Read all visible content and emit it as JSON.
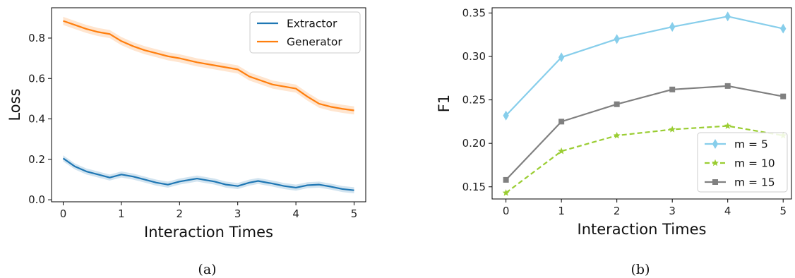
{
  "chart_data": [
    {
      "type": "line",
      "caption": "(a)",
      "xlabel": "Interaction Times",
      "ylabel": "Loss",
      "xlim": [
        -0.2,
        5.2
      ],
      "ylim": [
        -0.01,
        0.95
      ],
      "xticks": [
        0,
        1,
        2,
        3,
        4,
        5
      ],
      "yticks": [
        0.0,
        0.2,
        0.4,
        0.6,
        0.8
      ],
      "ytick_labels": [
        "0.0",
        "0.2",
        "0.4",
        "0.6",
        "0.8"
      ],
      "xtick_labels": [
        "0",
        "1",
        "2",
        "3",
        "4",
        "5"
      ],
      "grid": false,
      "legend_position": "top-right",
      "series": [
        {
          "name": "Extractor",
          "color": "#1f77b4",
          "x": [
            0,
            0.2,
            0.4,
            0.6,
            0.8,
            1.0,
            1.2,
            1.4,
            1.6,
            1.8,
            2.0,
            2.3,
            2.6,
            2.8,
            3.0,
            3.2,
            3.35,
            3.6,
            3.8,
            4.0,
            4.2,
            4.4,
            4.6,
            4.8,
            5.0
          ],
          "y": [
            0.205,
            0.165,
            0.14,
            0.125,
            0.11,
            0.125,
            0.115,
            0.1,
            0.085,
            0.075,
            0.09,
            0.105,
            0.09,
            0.075,
            0.068,
            0.085,
            0.093,
            0.08,
            0.068,
            0.06,
            0.072,
            0.075,
            0.065,
            0.053,
            0.047
          ],
          "band": 0.015
        },
        {
          "name": "Generator",
          "color": "#ff7f0e",
          "x": [
            0,
            0.2,
            0.4,
            0.6,
            0.8,
            1.0,
            1.2,
            1.4,
            1.6,
            1.8,
            2.0,
            2.3,
            2.6,
            2.8,
            3.0,
            3.2,
            3.4,
            3.6,
            3.8,
            4.0,
            4.2,
            4.4,
            4.6,
            4.8,
            5.0
          ],
          "y": [
            0.885,
            0.865,
            0.845,
            0.83,
            0.82,
            0.785,
            0.76,
            0.74,
            0.725,
            0.71,
            0.7,
            0.68,
            0.665,
            0.655,
            0.645,
            0.61,
            0.59,
            0.57,
            0.56,
            0.55,
            0.51,
            0.475,
            0.46,
            0.45,
            0.442
          ],
          "band": 0.02
        }
      ]
    },
    {
      "type": "line",
      "caption": "(b)",
      "xlabel": "Interaction Times",
      "ylabel": "F1",
      "xlim": [
        -0.25,
        5.15
      ],
      "ylim": [
        0.136,
        0.356
      ],
      "xticks": [
        0,
        1,
        2,
        3,
        4,
        5
      ],
      "yticks": [
        0.15,
        0.2,
        0.25,
        0.3,
        0.35
      ],
      "ytick_labels": [
        "0.15",
        "0.20",
        "0.25",
        "0.30",
        "0.35"
      ],
      "xtick_labels": [
        "0",
        "1",
        "2",
        "3",
        "4",
        "5"
      ],
      "grid": false,
      "legend_position": "bottom-right",
      "series": [
        {
          "name": "m = 5",
          "color": "#87ceeb",
          "marker": "diamond",
          "dashed": false,
          "x": [
            0,
            1,
            2,
            3,
            4,
            5
          ],
          "y": [
            0.232,
            0.299,
            0.32,
            0.334,
            0.346,
            0.332
          ]
        },
        {
          "name": "m = 10",
          "color": "#9acd32",
          "marker": "star",
          "dashed": true,
          "x": [
            0,
            1,
            2,
            3,
            4,
            5
          ],
          "y": [
            0.143,
            0.191,
            0.209,
            0.216,
            0.22,
            0.209
          ]
        },
        {
          "name": "m = 15",
          "color": "#808080",
          "marker": "square",
          "dashed": false,
          "x": [
            0,
            1,
            2,
            3,
            4,
            5
          ],
          "y": [
            0.158,
            0.225,
            0.245,
            0.262,
            0.266,
            0.254
          ]
        }
      ]
    }
  ]
}
